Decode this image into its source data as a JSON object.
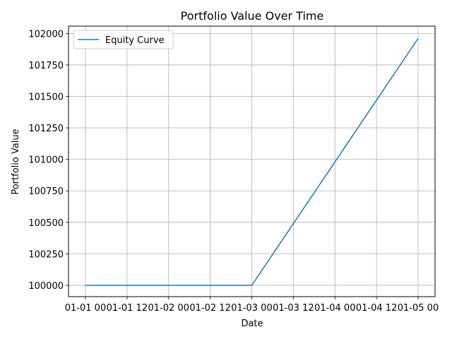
{
  "chart_data": {
    "type": "line",
    "title": "Portfolio Value Over Time",
    "xlabel": "Date",
    "ylabel": "Portfolio Value",
    "x_ticks": [
      "01-01 00",
      "01-01 12",
      "01-02 00",
      "01-02 12",
      "01-03 00",
      "01-03 12",
      "01-04 00",
      "01-04 12",
      "01-05 00"
    ],
    "y_ticks": [
      100000,
      100250,
      100500,
      100750,
      101000,
      101250,
      101500,
      101750,
      102000
    ],
    "ylim": [
      99910,
      102058
    ],
    "grid": true,
    "legend_position": "upper-left",
    "series": [
      {
        "name": "Equity Curve",
        "color": "#1f77b4",
        "x": [
          "01-01 00",
          "01-01 12",
          "01-02 00",
          "01-02 12",
          "01-03 00",
          "01-03 12",
          "01-04 00",
          "01-04 12",
          "01-05 00"
        ],
        "y": [
          100000,
          100000,
          100000,
          100000,
          100000,
          100490,
          100980,
          101470,
          101960
        ]
      }
    ]
  }
}
